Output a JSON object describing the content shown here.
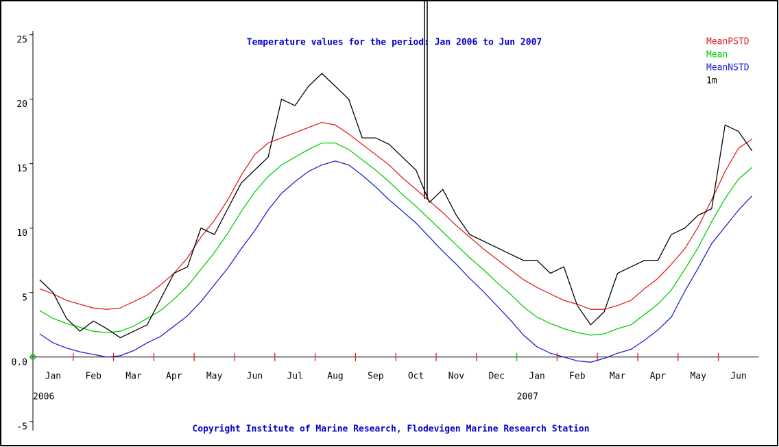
{
  "chart_data": {
    "type": "line",
    "title": "Temperature values for the period: Jan 2006 to Jun 2007",
    "footer": "Copyright Institute of Marine Research, Flodevigen Marine Research Station",
    "categories": [
      null,
      "Jan",
      null,
      null,
      "Feb",
      null,
      null,
      "Mar",
      null,
      null,
      "Apr",
      null,
      null,
      "May",
      null,
      null,
      "Jun",
      null,
      null,
      "Jul",
      null,
      null,
      "Aug",
      null,
      null,
      "Sep",
      null,
      null,
      "Oct",
      null,
      null,
      "Nov",
      null,
      null,
      "Dec",
      null,
      null,
      "Jan",
      null,
      null,
      "Feb",
      null,
      null,
      "Mar",
      null,
      null,
      "Apr",
      null,
      null,
      "May",
      null,
      null,
      "Jun",
      null
    ],
    "years": [
      "2006",
      "2007"
    ],
    "ylim": [
      -5.7,
      25.3
    ],
    "yticks": [
      {
        "value": -5,
        "label": "-5"
      },
      {
        "value": 0,
        "label": "0.0"
      },
      5,
      10,
      15,
      20,
      25
    ],
    "series": [
      {
        "name": "MeanPSTD",
        "color": "#e02020",
        "values": [
          5.3,
          4.9,
          4.4,
          4.1,
          3.8,
          3.7,
          3.8,
          4.3,
          4.8,
          5.6,
          6.5,
          7.7,
          9.3,
          10.6,
          12.2,
          14.1,
          15.7,
          16.6,
          17.0,
          17.4,
          17.8,
          18.2,
          18.0,
          17.3,
          16.5,
          15.7,
          14.9,
          13.9,
          13.0,
          12.1,
          11.2,
          10.2,
          9.3,
          8.4,
          7.6,
          6.8,
          6.0,
          5.4,
          4.9,
          4.4,
          4.1,
          3.7,
          3.7,
          4.0,
          4.4,
          5.3,
          6.1,
          7.2,
          8.4,
          10.1,
          12.2,
          14.4,
          16.2,
          16.9
        ]
      },
      {
        "name": "Mean",
        "color": "#00d000",
        "values": [
          3.6,
          3.0,
          2.6,
          2.3,
          2.0,
          1.9,
          2.0,
          2.4,
          3.0,
          3.6,
          4.5,
          5.5,
          6.8,
          8.1,
          9.6,
          11.3,
          12.8,
          14.0,
          14.9,
          15.5,
          16.1,
          16.6,
          16.6,
          16.1,
          15.3,
          14.5,
          13.6,
          12.6,
          11.7,
          10.7,
          9.7,
          8.7,
          7.7,
          6.8,
          5.8,
          4.9,
          3.9,
          3.1,
          2.6,
          2.2,
          1.9,
          1.7,
          1.8,
          2.2,
          2.5,
          3.3,
          4.1,
          5.2,
          6.8,
          8.5,
          10.5,
          12.3,
          13.8,
          14.7
        ]
      },
      {
        "name": "MeanNSTD",
        "color": "#2020d0",
        "values": [
          1.8,
          1.1,
          0.7,
          0.4,
          0.2,
          0.0,
          0.1,
          0.5,
          1.1,
          1.6,
          2.4,
          3.2,
          4.3,
          5.6,
          6.9,
          8.4,
          9.8,
          11.4,
          12.7,
          13.6,
          14.4,
          14.9,
          15.2,
          14.9,
          14.1,
          13.2,
          12.2,
          11.3,
          10.4,
          9.3,
          8.2,
          7.2,
          6.1,
          5.1,
          4.0,
          2.9,
          1.7,
          0.8,
          0.3,
          0.0,
          -0.3,
          -0.4,
          -0.1,
          0.3,
          0.6,
          1.3,
          2.1,
          3.1,
          5.1,
          6.9,
          8.8,
          10.1,
          11.4,
          12.5
        ]
      },
      {
        "name": "1m",
        "color": "#000000",
        "values": [
          6.0,
          5.0,
          3.0,
          2.0,
          2.8,
          2.2,
          1.5,
          2.0,
          2.5,
          4.5,
          6.5,
          7.0,
          10.0,
          9.5,
          11.5,
          13.5,
          14.5,
          15.5,
          20.0,
          19.5,
          21.0,
          22.0,
          21.0,
          20.0,
          17.0,
          17.0,
          16.5,
          15.5,
          14.5,
          12.0,
          13.0,
          11.0,
          9.5,
          9.0,
          8.5,
          8.0,
          7.5,
          7.5,
          6.5,
          7.0,
          4.0,
          2.5,
          3.5,
          6.5,
          7.0,
          7.5,
          7.5,
          9.5,
          10.0,
          11.0,
          11.5,
          18.0,
          17.5,
          16.0
        ]
      }
    ]
  }
}
